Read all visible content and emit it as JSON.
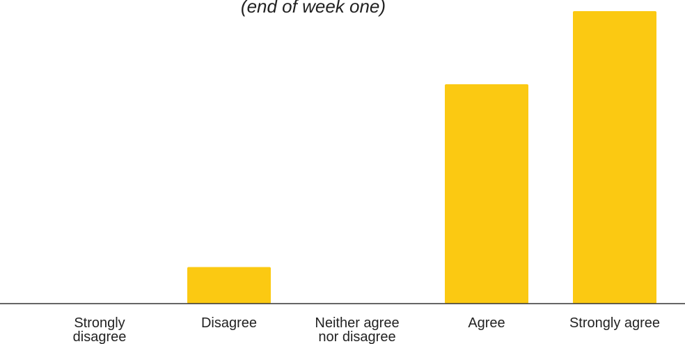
{
  "chart_data": {
    "type": "bar",
    "title": "(end of week one)",
    "categories": [
      "Strongly disagree",
      "Disagree",
      "Neither agree nor disagree",
      "Agree",
      "Strongly agree"
    ],
    "category_label_lines": [
      [
        "Strongly",
        "disagree"
      ],
      [
        "Disagree"
      ],
      [
        "Neither agree",
        "nor disagree"
      ],
      [
        "Agree"
      ],
      [
        "Strongly agree"
      ]
    ],
    "values": [
      0,
      1,
      0,
      6,
      8
    ],
    "ylim": [
      0,
      8
    ],
    "xlabel": "",
    "ylabel": "",
    "grid": false,
    "legend": "none",
    "bar_color": "#fbc912",
    "axis_color": "#333333"
  }
}
